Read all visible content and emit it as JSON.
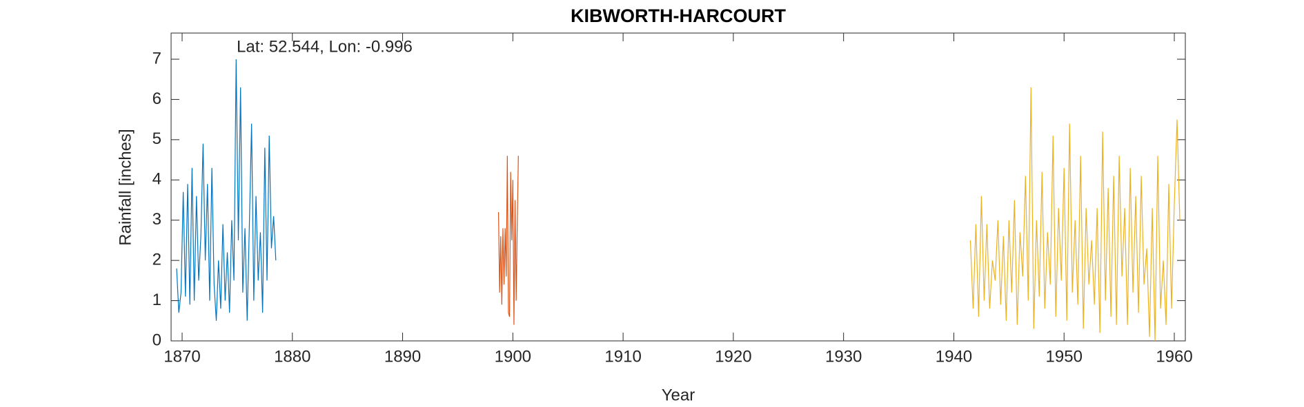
{
  "chart_data": {
    "type": "line",
    "title": "KIBWORTH-HARCOURT",
    "annotation": "Lat: 52.544, Lon: -0.996",
    "xlabel": "Year",
    "ylabel": "Rainfall [inches]",
    "xlim": [
      1869,
      1961
    ],
    "ylim": [
      0,
      7.65
    ],
    "xticks": [
      1870,
      1880,
      1890,
      1900,
      1910,
      1920,
      1930,
      1940,
      1950,
      1960
    ],
    "yticks": [
      0,
      1,
      2,
      3,
      4,
      5,
      6,
      7
    ],
    "series": [
      {
        "color": "#0072BD",
        "x": [
          1869.5,
          1869.7,
          1869.9,
          1870.1,
          1870.3,
          1870.5,
          1870.7,
          1870.9,
          1871.1,
          1871.3,
          1871.5,
          1871.7,
          1871.9,
          1872.1,
          1872.3,
          1872.5,
          1872.7,
          1872.9,
          1873.1,
          1873.3,
          1873.5,
          1873.7,
          1873.9,
          1874.1,
          1874.3,
          1874.5,
          1874.7,
          1874.9,
          1875.1,
          1875.3,
          1875.5,
          1875.7,
          1875.9,
          1876.1,
          1876.3,
          1876.5,
          1876.7,
          1876.9,
          1877.1,
          1877.3,
          1877.5,
          1877.7,
          1877.9,
          1878.1,
          1878.3,
          1878.5
        ],
        "values": [
          1.8,
          0.7,
          1.2,
          3.7,
          1.1,
          3.9,
          0.9,
          4.3,
          1.0,
          3.6,
          1.5,
          2.6,
          4.9,
          2.0,
          3.9,
          1.0,
          4.3,
          1.4,
          0.5,
          2.0,
          0.8,
          2.9,
          1.0,
          2.2,
          0.7,
          3.0,
          1.5,
          7.0,
          2.5,
          6.3,
          1.2,
          2.8,
          0.5,
          2.9,
          5.4,
          1.0,
          3.6,
          1.5,
          2.7,
          0.7,
          4.8,
          1.5,
          5.1,
          2.3,
          3.1,
          2.0
        ]
      },
      {
        "color": "#D95319",
        "x": [
          1898.7,
          1898.8,
          1898.9,
          1899.0,
          1899.1,
          1899.2,
          1899.3,
          1899.4,
          1899.5,
          1899.6,
          1899.7,
          1899.8,
          1899.9,
          1900.0,
          1900.1,
          1900.2,
          1900.3,
          1900.4,
          1900.5
        ],
        "values": [
          3.2,
          1.2,
          2.6,
          0.9,
          2.8,
          1.4,
          2.8,
          1.6,
          4.6,
          0.7,
          0.6,
          4.2,
          2.5,
          4.0,
          0.4,
          3.5,
          1.0,
          2.9,
          4.6
        ]
      },
      {
        "color": "#EDB120",
        "x": [
          1941.5,
          1941.75,
          1942.0,
          1942.25,
          1942.5,
          1942.75,
          1943.0,
          1943.25,
          1943.5,
          1943.75,
          1944.0,
          1944.25,
          1944.5,
          1944.75,
          1945.0,
          1945.25,
          1945.5,
          1945.75,
          1946.0,
          1946.25,
          1946.5,
          1946.75,
          1947.0,
          1947.25,
          1947.5,
          1947.75,
          1948.0,
          1948.25,
          1948.5,
          1948.75,
          1949.0,
          1949.25,
          1949.5,
          1949.75,
          1950.0,
          1950.25,
          1950.5,
          1950.75,
          1951.0,
          1951.25,
          1951.5,
          1951.75,
          1952.0,
          1952.25,
          1952.5,
          1952.75,
          1953.0,
          1953.25,
          1953.5,
          1953.75,
          1954.0,
          1954.25,
          1954.5,
          1954.75,
          1955.0,
          1955.25,
          1955.5,
          1955.75,
          1956.0,
          1956.25,
          1956.5,
          1956.75,
          1957.0,
          1957.25,
          1957.5,
          1957.75,
          1958.0,
          1958.25,
          1958.5,
          1958.75,
          1959.0,
          1959.25,
          1959.5,
          1959.75,
          1960.0,
          1960.25,
          1960.5
        ],
        "values": [
          2.5,
          0.8,
          2.9,
          0.6,
          3.6,
          1.0,
          2.9,
          0.8,
          2.0,
          1.5,
          3.0,
          0.9,
          2.6,
          0.5,
          3.0,
          1.2,
          3.5,
          0.4,
          2.7,
          1.6,
          4.1,
          1.0,
          6.3,
          0.3,
          3.0,
          1.1,
          4.2,
          0.8,
          2.7,
          1.4,
          5.1,
          0.6,
          3.3,
          1.5,
          4.3,
          0.5,
          5.4,
          1.2,
          3.0,
          0.9,
          4.6,
          0.3,
          3.3,
          1.4,
          2.5,
          0.9,
          3.3,
          0.2,
          5.2,
          1.0,
          3.8,
          0.6,
          4.1,
          0.4,
          4.6,
          1.6,
          3.3,
          0.4,
          4.3,
          1.2,
          3.6,
          0.7,
          4.1,
          1.4,
          2.3,
          0.1,
          3.3,
          0.0,
          4.6,
          0.8,
          2.0,
          0.4,
          3.9,
          0.8,
          3.4,
          5.5,
          3.0
        ]
      }
    ]
  }
}
